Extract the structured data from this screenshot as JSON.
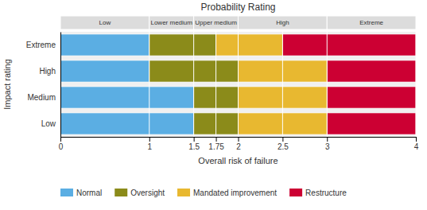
{
  "chart_data": {
    "type": "bar",
    "orientation": "horizontal",
    "stacked": true,
    "title": "Probability Rating",
    "x_label": "Overall risk of failure",
    "y_label": "Impact rating",
    "categories": [
      "Extreme",
      "High",
      "Medium",
      "Low"
    ],
    "series": [
      {
        "name": "Normal",
        "color": "#5BAEE3",
        "values": [
          1,
          1,
          1.5,
          1.5
        ]
      },
      {
        "name": "Oversight",
        "color": "#8B8B1A",
        "values": [
          0.75,
          1,
          0.5,
          0.5
        ]
      },
      {
        "name": "Mandated improvement",
        "color": "#E8B830",
        "values": [
          0.75,
          1,
          1,
          1
        ]
      },
      {
        "name": "Restructure",
        "color": "#CC0033",
        "values": [
          1.5,
          1,
          1,
          1
        ]
      }
    ],
    "xlim": [
      0,
      4
    ],
    "xticks": [
      0,
      1,
      1.5,
      1.75,
      2,
      2.5,
      3,
      4
    ],
    "grid": true,
    "legend": "lower left",
    "annotations": [
      {
        "text": "Low",
        "x_from": 0,
        "x_to": 1
      },
      {
        "text": "Lower medium",
        "x_from": 1,
        "x_to": 1.5
      },
      {
        "text": "Upper medium",
        "x_from": 1.5,
        "x_to": 2
      },
      {
        "text": "High",
        "x_from": 2,
        "x_to": 3
      },
      {
        "text": "Extreme",
        "x_from": 3,
        "x_to": 4
      }
    ]
  }
}
